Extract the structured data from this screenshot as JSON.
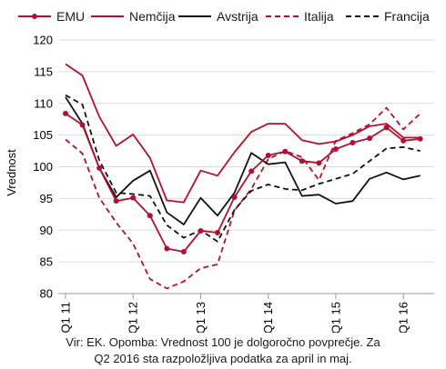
{
  "chart_data": {
    "type": "line",
    "ylabel": "Vrednost",
    "ylim": [
      80,
      120
    ],
    "yticks": [
      "80",
      "85",
      "90",
      "95",
      "100",
      "105",
      "110",
      "115",
      "120"
    ],
    "ytick_values": [
      80,
      85,
      90,
      95,
      100,
      105,
      110,
      115,
      120
    ],
    "xlim": [
      0,
      21.5
    ],
    "xtick_labels": [
      {
        "label": "Q1 11",
        "index": 0
      },
      {
        "label": "Q1 12",
        "index": 4
      },
      {
        "label": "Q1 13",
        "index": 8
      },
      {
        "label": "Q1 14",
        "index": 12
      },
      {
        "label": "Q1 15",
        "index": 16
      },
      {
        "label": "Q1 16",
        "index": 20
      }
    ],
    "legend_placement": "top",
    "grid": "horizontal",
    "series": [
      {
        "name": "EMU",
        "color": "#b2102f",
        "style": "solid-markers",
        "values": [
          108.4,
          106.6,
          99.8,
          94.6,
          95.1,
          92.3,
          87.1,
          86.6,
          89.9,
          89.6,
          95.2,
          99.3,
          101.8,
          102.4,
          100.9,
          100.6,
          102.8,
          103.8,
          104.5,
          106.2,
          104.1,
          104.4
        ]
      },
      {
        "name": "Nemčija",
        "color": "#b2102f",
        "style": "solid",
        "values": [
          116.2,
          114.4,
          107.9,
          103.3,
          105.1,
          101.4,
          94.7,
          94.4,
          99.4,
          98.6,
          102.3,
          105.5,
          106.8,
          106.8,
          104.2,
          103.6,
          104.0,
          105.0,
          106.4,
          106.8,
          104.6,
          104.6
        ]
      },
      {
        "name": "Avstrija",
        "color": "#111111",
        "style": "solid",
        "values": [
          111.0,
          106.8,
          99.8,
          95.2,
          97.8,
          99.4,
          92.8,
          90.9,
          95.1,
          92.3,
          95.9,
          102.2,
          100.4,
          100.7,
          95.4,
          95.6,
          94.2,
          94.6,
          98.1,
          99.1,
          98.0,
          98.6
        ]
      },
      {
        "name": "Italija",
        "color": "#b2102f",
        "style": "dashed",
        "values": [
          104.3,
          102.1,
          95.1,
          91.2,
          87.9,
          82.3,
          80.8,
          81.9,
          84.0,
          84.6,
          93.1,
          96.5,
          101.2,
          102.5,
          101.5,
          97.9,
          104.1,
          105.3,
          106.7,
          109.3,
          105.9,
          108.4
        ]
      },
      {
        "name": "Francija",
        "color": "#111111",
        "style": "dashed",
        "values": [
          111.3,
          109.8,
          101.0,
          95.9,
          95.7,
          95.4,
          90.8,
          88.8,
          90.0,
          88.2,
          93.2,
          96.2,
          97.2,
          96.5,
          96.3,
          97.3,
          98.1,
          98.9,
          100.9,
          102.9,
          103.1,
          102.5
        ]
      }
    ]
  },
  "source_lines": [
    "Vir: EK. Opomba: Vrednost 100 je dolgoročno povprečje. Za",
    "Q2 2016 sta razpoložljiva podatka za april in maj."
  ]
}
